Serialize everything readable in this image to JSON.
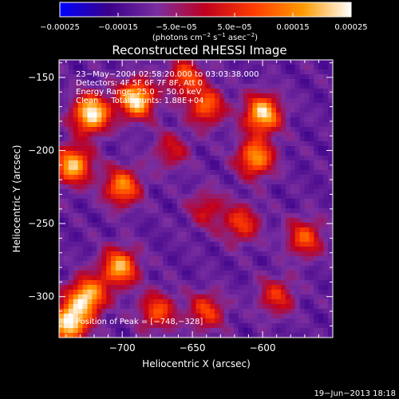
{
  "chart_data": {
    "type": "heatmap",
    "title": "Reconstructed RHESSI Image",
    "xlabel": "Heliocentric X (arcsec)",
    "ylabel": "Heliocentric Y (arcsec)",
    "xlim": [
      -745,
      -550
    ],
    "ylim": [
      -328,
      -138
    ],
    "x_ticks": [
      -700,
      -650,
      -600
    ],
    "x_tick_labels": [
      "−700",
      "−650",
      "−600"
    ],
    "y_ticks": [
      -150,
      -200,
      -250,
      -300
    ],
    "y_tick_labels": [
      "−150",
      "−200",
      "−250",
      "−300"
    ],
    "colorbar": {
      "range": [
        -0.00025,
        0.00025
      ],
      "ticks": [
        -0.00025,
        -0.00015,
        -5e-05,
        5e-05,
        0.00015,
        0.00025
      ],
      "tick_labels": [
        "−0.00025",
        "−0.00015",
        "−5.0e−05",
        "5.0e−05",
        "0.00015",
        "0.00025"
      ],
      "unit_prefix": "(photons cm",
      "unit_sup1": "−2",
      "unit_mid1": " s",
      "unit_sup2": "−1",
      "unit_mid2": " asec",
      "unit_sup3": "−2",
      "unit_suffix": ")",
      "colors": [
        "#0000ff",
        "#3a008a",
        "#7a2ea0",
        "#c0001e",
        "#ff3c00",
        "#ff9a00",
        "#ffffff"
      ]
    },
    "annotations": [
      "23−May−2004 02:58:20.000 to 03:03:38.000",
      "Detectors: 4F 5F 6F 7F 8F, Att 0",
      "Energy Range: 25.0 − 50.0 keV",
      "Clean     Total counts: 1.88E+04"
    ],
    "peak_label": "Position of Peak = [−748,−328]",
    "peak": [
      -748,
      -328
    ],
    "intensity_peaks": [
      {
        "x": -722,
        "y": -175,
        "v": 1.0
      },
      {
        "x": -690,
        "y": -165,
        "v": 0.95
      },
      {
        "x": -735,
        "y": -210,
        "v": 0.85
      },
      {
        "x": -725,
        "y": -300,
        "v": 0.9
      },
      {
        "x": -702,
        "y": -280,
        "v": 0.8
      },
      {
        "x": -738,
        "y": -318,
        "v": 1.0
      },
      {
        "x": -700,
        "y": -225,
        "v": 0.7
      },
      {
        "x": -600,
        "y": -175,
        "v": 0.9
      },
      {
        "x": -605,
        "y": -205,
        "v": 0.75
      },
      {
        "x": -640,
        "y": -170,
        "v": 0.6
      },
      {
        "x": -655,
        "y": -150,
        "v": 0.55
      },
      {
        "x": -570,
        "y": -260,
        "v": 0.55
      },
      {
        "x": -640,
        "y": -310,
        "v": 0.5
      },
      {
        "x": -675,
        "y": -310,
        "v": 0.55
      },
      {
        "x": -615,
        "y": -250,
        "v": 0.5
      },
      {
        "x": -590,
        "y": -300,
        "v": 0.45
      },
      {
        "x": -640,
        "y": -240,
        "v": 0.35
      },
      {
        "x": -665,
        "y": -200,
        "v": 0.35
      }
    ]
  },
  "footer_date": "19−Jun−2013 18:18"
}
